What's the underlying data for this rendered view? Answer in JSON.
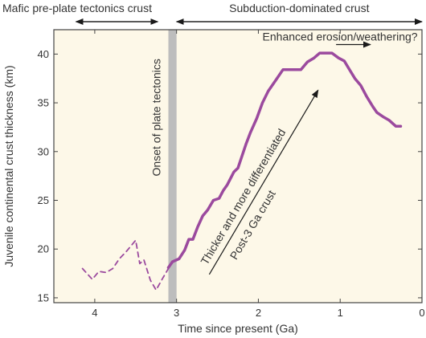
{
  "chart_data": {
    "type": "line",
    "xlabel": "Time since present (Ga)",
    "ylabel": "Juvenile continental crust thickness (km)",
    "xlim": [
      4.5,
      0
    ],
    "ylim": [
      14.5,
      42.5
    ],
    "x_ticks": [
      4,
      3,
      2,
      1,
      0
    ],
    "y_ticks": [
      15,
      20,
      25,
      30,
      35,
      40
    ],
    "grid": false,
    "plot_background": "#fdf8e8",
    "series": [
      {
        "style": "dashed",
        "color": "#9b4a9e",
        "x": [
          4.15,
          4.03,
          3.95,
          3.86,
          3.78,
          3.7,
          3.62,
          3.5,
          3.45,
          3.4,
          3.32,
          3.25,
          3.17,
          3.1
        ],
        "y": [
          18.0,
          16.9,
          17.7,
          17.6,
          18.0,
          19.0,
          19.7,
          20.9,
          18.5,
          18.9,
          16.8,
          15.8,
          17.0,
          18.0
        ]
      },
      {
        "style": "solid",
        "color": "#9b4a9e",
        "x": [
          3.1,
          3.05,
          2.97,
          2.9,
          2.85,
          2.8,
          2.74,
          2.68,
          2.62,
          2.55,
          2.48,
          2.43,
          2.38,
          2.3,
          2.25,
          2.15,
          2.1,
          2.02,
          1.95,
          1.88,
          1.78,
          1.7,
          1.62,
          1.55,
          1.48,
          1.4,
          1.32,
          1.25,
          1.18,
          1.1,
          1.02,
          0.95,
          0.9,
          0.82,
          0.75,
          0.68,
          0.6,
          0.55,
          0.48,
          0.4,
          0.32,
          0.26
        ],
        "y": [
          18.1,
          18.7,
          19.0,
          19.9,
          21.0,
          21.0,
          22.3,
          23.4,
          24.0,
          25.0,
          25.2,
          26.0,
          26.6,
          27.9,
          28.3,
          30.8,
          31.9,
          33.4,
          35.0,
          36.2,
          37.4,
          38.4,
          38.4,
          38.4,
          38.4,
          39.2,
          39.6,
          40.1,
          40.1,
          40.1,
          39.6,
          39.3,
          38.6,
          37.5,
          36.8,
          35.7,
          34.6,
          34.0,
          33.6,
          33.2,
          32.6,
          32.6
        ]
      }
    ],
    "regions": [
      {
        "label": "Mafic pre-plate tectonics crust",
        "x_start": 4.23,
        "x_end": 3.23
      },
      {
        "label": "Subduction-dominated crust",
        "x_start": 3.0,
        "x_end": 0.0
      }
    ],
    "vertical_band": {
      "label": "Onset of plate tectonics",
      "x_start": 3.1,
      "x_end": 3.0,
      "color": "#bdbdbd"
    },
    "annotations": [
      {
        "text": "Enhanced erosion/weathering?",
        "arrow_from": [
          1.05,
          40.4
        ],
        "arrow_to": [
          0.63,
          40.4
        ]
      },
      {
        "text": "Thicker and more differentiated",
        "text2": "Post-3 Ga crust",
        "arrow_from": [
          2.6,
          17.4
        ],
        "arrow_to": [
          1.27,
          36.3
        ]
      }
    ]
  }
}
